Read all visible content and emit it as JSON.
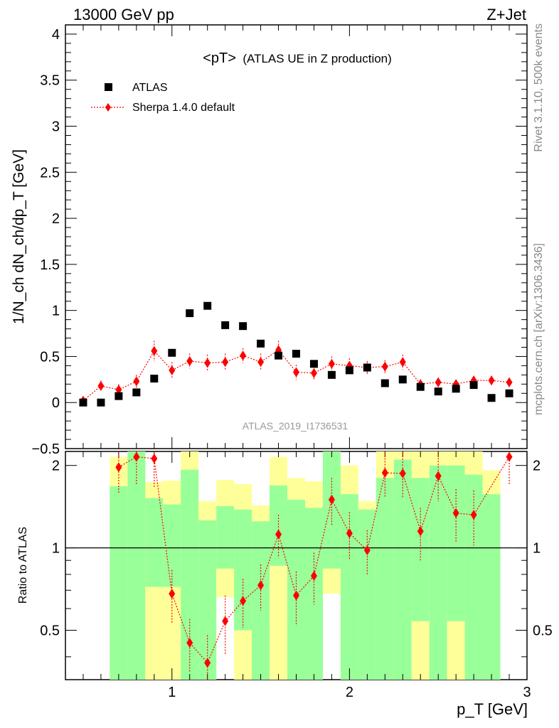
{
  "header": {
    "left": "13000 GeV pp",
    "right": "Z+Jet"
  },
  "side_labels": {
    "rivet": "Rivet 3.1.10,  500k events",
    "mcplots": "mcplots.cern.ch [arXiv:1306.3436]"
  },
  "colors": {
    "data": "#000000",
    "mc": "#ff0000",
    "band_inner": "#99ff99",
    "band_outer": "#ffff99"
  },
  "chart_data": [
    {
      "type": "scatter",
      "title": "<pT>",
      "subtitle": "(ATLAS UE in Z production)",
      "ylabel": "1/N_ch dN_ch/dp_T [GeV]",
      "analysis": "ATLAS_2019_I1736531",
      "xlim": [
        0.4,
        3.0
      ],
      "ylim": [
        -0.5,
        4.1
      ],
      "yticks": [
        -0.5,
        0,
        0.5,
        1,
        1.5,
        2,
        2.5,
        3,
        3.5,
        4
      ],
      "ytick_labels": [
        "−0.5",
        "0",
        "0.5",
        "1",
        "1.5",
        "2",
        "2.5",
        "3",
        "3.5",
        "4"
      ],
      "legend_position": "top-left",
      "series": [
        {
          "name": "ATLAS",
          "marker": "square",
          "x": [
            0.5,
            0.6,
            0.7,
            0.8,
            0.9,
            1.0,
            1.1,
            1.2,
            1.3,
            1.4,
            1.5,
            1.6,
            1.7,
            1.8,
            1.9,
            2.0,
            2.1,
            2.2,
            2.3,
            2.4,
            2.5,
            2.6,
            2.7,
            2.8,
            2.9
          ],
          "y": [
            0.0,
            0.0,
            0.07,
            0.11,
            0.26,
            0.54,
            0.97,
            1.05,
            0.84,
            0.83,
            0.64,
            0.51,
            0.53,
            0.42,
            0.3,
            0.35,
            0.38,
            0.21,
            0.25,
            0.17,
            0.12,
            0.15,
            0.19,
            0.05,
            0.1
          ]
        },
        {
          "name": "Sherpa 1.4.0 default",
          "marker": "diamond",
          "x": [
            0.5,
            0.6,
            0.7,
            0.8,
            0.9,
            1.0,
            1.1,
            1.2,
            1.3,
            1.4,
            1.5,
            1.6,
            1.7,
            1.8,
            1.9,
            2.0,
            2.1,
            2.2,
            2.3,
            2.4,
            2.5,
            2.6,
            2.7,
            2.8,
            2.9
          ],
          "y": [
            0.02,
            0.18,
            0.14,
            0.23,
            0.56,
            0.35,
            0.45,
            0.43,
            0.44,
            0.51,
            0.44,
            0.57,
            0.33,
            0.32,
            0.42,
            0.4,
            0.38,
            0.39,
            0.44,
            0.2,
            0.22,
            0.2,
            0.24,
            0.24,
            0.22
          ],
          "yerr": [
            0.03,
            0.06,
            0.06,
            0.07,
            0.11,
            0.09,
            0.08,
            0.09,
            0.09,
            0.08,
            0.09,
            0.1,
            0.08,
            0.07,
            0.08,
            0.08,
            0.07,
            0.07,
            0.08,
            0.05,
            0.05,
            0.05,
            0.05,
            0.05,
            0.05
          ]
        }
      ]
    },
    {
      "type": "scatter",
      "ylabel": "Ratio to ATLAS",
      "xlabel": "p_T [GeV]",
      "xlim": [
        0.4,
        3.0
      ],
      "ylim": [
        0.33,
        2.25
      ],
      "xticks": [
        1,
        2,
        3
      ],
      "xtick_labels": [
        "1",
        "2",
        "3"
      ],
      "yticks": [
        0.5,
        1,
        2
      ],
      "ytick_labels": [
        "0.5",
        "1",
        "2"
      ],
      "reference_line": 1,
      "bands": {
        "x_low": [
          0.65,
          0.75,
          0.85,
          0.95,
          1.05,
          1.15,
          1.25,
          1.35,
          1.45,
          1.55,
          1.65,
          1.75,
          1.85,
          1.95,
          2.05,
          2.15,
          2.25,
          2.35,
          2.45,
          2.55,
          2.65,
          2.75
        ],
        "x_high": [
          0.75,
          0.85,
          0.95,
          1.05,
          1.15,
          1.25,
          1.35,
          1.45,
          1.55,
          1.65,
          1.75,
          1.85,
          1.95,
          2.05,
          2.15,
          2.25,
          2.35,
          2.45,
          2.55,
          2.65,
          2.75,
          2.85
        ],
        "inner_low": [
          0.33,
          0.33,
          0.72,
          0.72,
          0.33,
          0.33,
          0.84,
          0.5,
          0.33,
          0.86,
          0.33,
          0.33,
          0.84,
          0.33,
          0.33,
          0.33,
          0.33,
          0.54,
          0.33,
          0.54,
          0.33,
          0.33
        ],
        "inner_high": [
          1.68,
          2.25,
          1.52,
          1.44,
          1.93,
          1.26,
          1.42,
          1.38,
          1.25,
          1.69,
          1.5,
          1.4,
          2.25,
          1.57,
          1.38,
          1.8,
          2.1,
          1.8,
          2.0,
          2.0,
          1.85,
          1.57
        ],
        "outer_low": [
          0.33,
          0.33,
          0.33,
          0.33,
          0.33,
          0.33,
          0.66,
          0.33,
          0.33,
          0.33,
          0.33,
          0.33,
          0.68,
          0.33,
          0.33,
          0.33,
          0.33,
          0.33,
          0.33,
          0.33,
          0.33,
          0.33
        ],
        "outer_high": [
          2.15,
          2.25,
          1.74,
          1.76,
          2.25,
          1.48,
          1.77,
          1.71,
          1.43,
          2.15,
          1.8,
          1.75,
          2.25,
          2.0,
          1.48,
          2.25,
          2.25,
          2.25,
          2.25,
          2.25,
          2.25,
          1.92
        ]
      },
      "series": [
        {
          "name": "Sherpa 1.4.0 default",
          "x": [
            0.7,
            0.8,
            0.9,
            1.0,
            1.1,
            1.2,
            1.3,
            1.4,
            1.5,
            1.6,
            1.7,
            1.8,
            1.9,
            2.0,
            2.1,
            2.2,
            2.3,
            2.4,
            2.5,
            2.6,
            2.7,
            2.9
          ],
          "y": [
            1.97,
            2.15,
            2.12,
            0.68,
            0.45,
            0.38,
            0.54,
            0.64,
            0.73,
            1.12,
            0.67,
            0.79,
            1.5,
            1.13,
            0.98,
            1.88,
            1.87,
            1.15,
            1.83,
            1.34,
            1.32,
            2.15
          ],
          "yerr": [
            0.4,
            0.45,
            0.45,
            0.15,
            0.1,
            0.1,
            0.13,
            0.13,
            0.14,
            0.2,
            0.15,
            0.17,
            0.3,
            0.22,
            0.18,
            0.35,
            0.35,
            0.25,
            0.35,
            0.3,
            0.3,
            0.45
          ]
        }
      ]
    }
  ]
}
